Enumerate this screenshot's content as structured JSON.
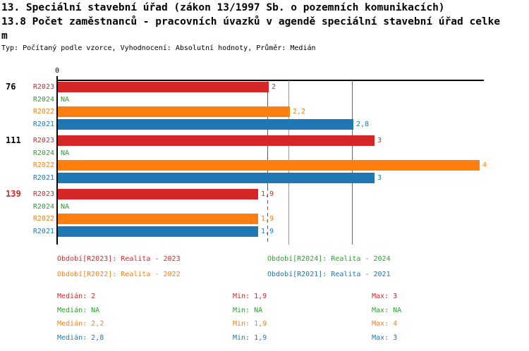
{
  "header": {
    "title_line1": "13. Speciální stavební úřad (zákon 13/1997 Sb. o pozemních komunikacích)",
    "title_line2": "13.8 Počet zaměstnanců - pracovních úvazků v agendě speciální stavební úřad celke",
    "title_line3": "m",
    "subtitle": "Typ: Počítaný podle vzorce, Vyhodnocení: Absolutní hodnoty, Průměr: Medián"
  },
  "colors": {
    "red": "#d62728",
    "green": "#2ca02c",
    "orange": "#ff7f0e",
    "blue": "#1f77b4",
    "axis": "#000000",
    "background": "#ffffff"
  },
  "axis": {
    "zero_label": "0"
  },
  "chart_data": {
    "type": "bar",
    "orientation": "horizontal",
    "title": "13.8 Počet zaměstnanců - pracovních úvazků v agendě speciální stavební úřad celkem",
    "x_range": [
      0,
      4
    ],
    "grid": false,
    "series": [
      {
        "id": "R2023",
        "name": "Realita - 2023",
        "color": "#d62728"
      },
      {
        "id": "R2024",
        "name": "Realita - 2024",
        "color": "#2ca02c"
      },
      {
        "id": "R2022",
        "name": "Realita - 2022",
        "color": "#ff7f0e"
      },
      {
        "id": "R2021",
        "name": "Realita - 2021",
        "color": "#1f77b4"
      }
    ],
    "groups": [
      {
        "label": "76",
        "label_color": "#000000",
        "values": [
          {
            "series": "R2023",
            "value": 2,
            "display": "2"
          },
          {
            "series": "R2024",
            "value": null,
            "display": "NA"
          },
          {
            "series": "R2022",
            "value": 2.2,
            "display": "2,2"
          },
          {
            "series": "R2021",
            "value": 2.8,
            "display": "2,8"
          }
        ]
      },
      {
        "label": "111",
        "label_color": "#000000",
        "values": [
          {
            "series": "R2023",
            "value": 3,
            "display": "3"
          },
          {
            "series": "R2024",
            "value": null,
            "display": "NA"
          },
          {
            "series": "R2022",
            "value": 4,
            "display": "4"
          },
          {
            "series": "R2021",
            "value": 3,
            "display": "3"
          }
        ]
      },
      {
        "label": "139",
        "label_color": "#d62728",
        "values": [
          {
            "series": "R2023",
            "value": 1.9,
            "display": "1,9"
          },
          {
            "series": "R2024",
            "value": null,
            "display": "NA"
          },
          {
            "series": "R2022",
            "value": 1.9,
            "display": "1,9"
          },
          {
            "series": "R2021",
            "value": 1.9,
            "display": "1,9"
          }
        ]
      }
    ],
    "median_lines": [
      {
        "series": "R2023",
        "value": 2,
        "color": "#d62728",
        "bottom_style": "dashed"
      },
      {
        "series": "R2022",
        "value": 2.2,
        "color": "#ff7f0e",
        "bottom_style": "solid"
      },
      {
        "series": "R2021",
        "value": 2.8,
        "color": "#1f77b4",
        "bottom_style": "solid"
      }
    ]
  },
  "legend": {
    "items": [
      {
        "id": "R2023",
        "label": "Období[R2023]: Realita - 2023",
        "color": "#d62728"
      },
      {
        "id": "R2024",
        "label": "Období[R2024]: Realita - 2024",
        "color": "#2ca02c"
      },
      {
        "id": "R2022",
        "label": "Období[R2022]: Realita - 2022",
        "color": "#ff7f0e"
      },
      {
        "id": "R2021",
        "label": "Období[R2021]: Realita - 2021",
        "color": "#1f77b4"
      }
    ]
  },
  "stats": {
    "rows": [
      {
        "id": "R2023",
        "median": "Medián: 2",
        "min": "Min: 1,9",
        "max": "Max: 3",
        "color": "#d62728"
      },
      {
        "id": "R2024",
        "median": "Medián: NA",
        "min": "Min: NA",
        "max": "Max: NA",
        "color": "#2ca02c"
      },
      {
        "id": "R2022",
        "median": "Medián: 2,2",
        "min": "Min: 1,9",
        "max": "Max: 4",
        "color": "#ff7f0e"
      },
      {
        "id": "R2021",
        "median": "Medián: 2,8",
        "min": "Min: 1,9",
        "max": "Max: 3",
        "color": "#1f77b4"
      }
    ]
  }
}
